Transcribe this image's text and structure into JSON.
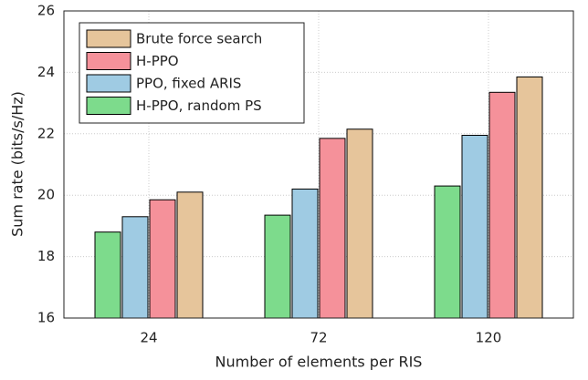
{
  "chart_data": {
    "type": "bar",
    "x_label": "Number of elements per RIS",
    "y_label": "Sum rate (bits/s/Hz)",
    "categories": [
      "24",
      "72",
      "120"
    ],
    "series": [
      {
        "name": "H-PPO, random PS",
        "color": "#7ddb8c",
        "values": [
          18.8,
          19.35,
          20.3
        ]
      },
      {
        "name": "PPO, fixed ARIS",
        "color": "#9fcbe3",
        "values": [
          19.3,
          20.2,
          21.95
        ]
      },
      {
        "name": "H-PPO",
        "color": "#f5919a",
        "values": [
          19.85,
          21.85,
          23.35
        ]
      },
      {
        "name": "Brute force search",
        "color": "#e6c59b",
        "values": [
          20.1,
          22.15,
          23.85
        ]
      }
    ],
    "legend_order": [
      3,
      2,
      1,
      0
    ],
    "legend": "upper left",
    "ylim": [
      16,
      26
    ],
    "yticks": [
      16,
      18,
      20,
      22,
      24,
      26
    ],
    "grid": true
  }
}
